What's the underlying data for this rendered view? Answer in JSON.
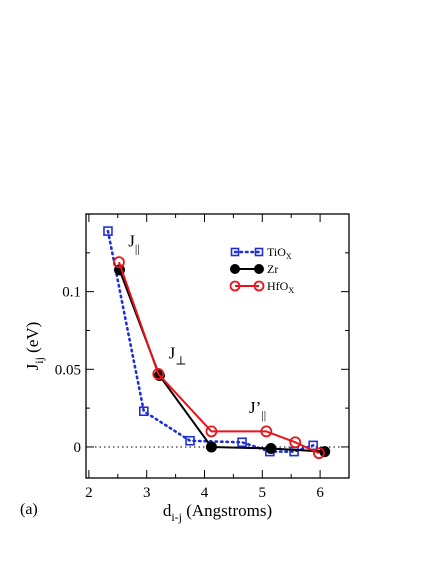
{
  "chart_data": {
    "type": "line",
    "panel_label": "(a)",
    "xlabel": {
      "main": "d",
      "sub": "i-j",
      "rest": " (Angstroms)"
    },
    "ylabel": {
      "main": "J",
      "sub": "ij",
      "rest": " (eV)"
    },
    "xlim": [
      1.95,
      6.5
    ],
    "ylim": [
      -0.02,
      0.15
    ],
    "x_ticks": [
      {
        "value": 2,
        "label": "2"
      },
      {
        "value": 3,
        "label": "3"
      },
      {
        "value": 4,
        "label": "4"
      },
      {
        "value": 5,
        "label": "5"
      },
      {
        "value": 6,
        "label": "6"
      }
    ],
    "y_ticks": [
      {
        "value": 0,
        "label": "0"
      },
      {
        "value": 0.05,
        "label": "0.05"
      },
      {
        "value": 0.1,
        "label": "0.1"
      }
    ],
    "zero_line": true,
    "legend_position": "top-right",
    "series": [
      {
        "name": "TiO",
        "name_sub": "X",
        "color": "#1f2fd6",
        "marker": "open-square",
        "line": "dotted",
        "x": [
          2.33,
          2.95,
          3.75,
          4.65,
          5.13,
          5.55,
          5.88
        ],
        "y": [
          0.139,
          0.023,
          0.004,
          0.003,
          -0.003,
          -0.003,
          0.001
        ]
      },
      {
        "name": "Zr",
        "name_sub": "",
        "color": "#000000",
        "marker": "filled-circle",
        "line": "solid",
        "x": [
          2.53,
          3.22,
          4.12,
          5.15,
          6.08
        ],
        "y": [
          0.114,
          0.046,
          0.0,
          -0.001,
          -0.003
        ]
      },
      {
        "name": "HfO",
        "name_sub": "X",
        "color": "#e8141c",
        "marker": "open-circle",
        "line": "solid",
        "x": [
          2.52,
          3.2,
          4.12,
          5.07,
          5.57,
          5.98
        ],
        "y": [
          0.119,
          0.047,
          0.01,
          0.01,
          0.003,
          -0.004
        ]
      }
    ],
    "annotations": [
      {
        "main": "J",
        "sub": "||",
        "prime": "",
        "x": 2.68,
        "y": 0.129
      },
      {
        "main": "J",
        "sub": "⊥",
        "prime": "",
        "x": 3.38,
        "y": 0.057
      },
      {
        "main": "J",
        "sub": "||",
        "prime": "’",
        "x": 4.77,
        "y": 0.022
      }
    ]
  }
}
